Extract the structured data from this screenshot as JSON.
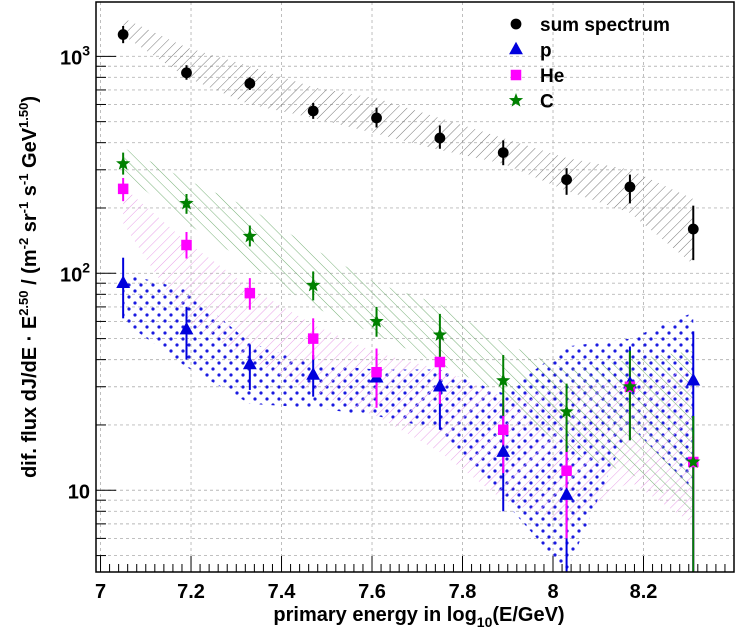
{
  "chart_data": {
    "type": "scatter",
    "title": "",
    "xlabel": {
      "main": "primary energy in log",
      "sub": "10",
      "tail": "(E/GeV)"
    },
    "ylabel": {
      "p1": "dif. flux dJ/dE · E",
      "p1sup": "2.50",
      "p2": " / (m",
      "p2sup": "-2",
      "p3": " sr",
      "p3sup": "-1",
      "p4": " s",
      "p4sup": "-1",
      "p5": " GeV",
      "p5sup": "1.50",
      "p6": ")"
    },
    "xlim": [
      6.99,
      8.4
    ],
    "ylim": [
      4.2,
      1780
    ],
    "yscale": "log",
    "grid": true,
    "x_ticks": [
      7.0,
      7.2,
      7.4,
      7.6,
      7.8,
      8.0,
      8.2
    ],
    "x_tick_labels": [
      "7",
      "7.2",
      "7.4",
      "7.6",
      "7.8",
      "8",
      "8.2"
    ],
    "y_tick_labels": [
      {
        "value": 10,
        "base": "10",
        "exp": ""
      },
      {
        "value": 100,
        "base": "10",
        "exp": "2"
      },
      {
        "value": 1000,
        "base": "10",
        "exp": "3"
      }
    ],
    "legend_position": "top-right",
    "series": [
      {
        "name": "sum spectrum",
        "color": "#000000",
        "marker": "circle",
        "x": [
          7.05,
          7.19,
          7.33,
          7.47,
          7.61,
          7.75,
          7.89,
          8.03,
          8.17,
          8.31
        ],
        "y": [
          1260,
          840,
          750,
          560,
          520,
          420,
          360,
          270,
          250,
          160
        ],
        "err": [
          [
            1150,
            1380
          ],
          [
            780,
            910
          ],
          [
            700,
            800
          ],
          [
            515,
            610
          ],
          [
            470,
            580
          ],
          [
            375,
            480
          ],
          [
            315,
            410
          ],
          [
            230,
            305
          ],
          [
            210,
            285
          ],
          [
            115,
            205
          ]
        ],
        "band_lower": [
          1250,
          800,
          600,
          520,
          440,
          370,
          320,
          240,
          190,
          110
        ],
        "band_upper": [
          1500,
          1100,
          900,
          720,
          640,
          520,
          420,
          340,
          300,
          220
        ]
      },
      {
        "name": "p",
        "color": "#0000dd",
        "marker": "triangle",
        "x": [
          7.05,
          7.19,
          7.33,
          7.47,
          7.61,
          7.75,
          7.89,
          8.03,
          8.17,
          8.31
        ],
        "y": [
          90,
          55,
          38,
          34,
          33,
          30,
          15,
          9.5,
          31,
          32
        ],
        "err": [
          [
            62,
            118
          ],
          [
            40,
            70
          ],
          [
            29,
            47
          ],
          [
            27,
            42
          ],
          [
            25,
            41
          ],
          [
            19,
            41
          ],
          [
            8,
            24
          ],
          [
            4.2,
            16
          ],
          [
            17,
            46
          ],
          [
            4.2,
            54
          ]
        ],
        "band_lower": [
          60,
          37,
          25,
          24,
          22,
          19,
          9,
          4.2,
          20,
          10
        ],
        "band_upper": [
          100,
          84,
          48,
          38,
          36,
          36,
          28,
          46,
          50,
          66
        ]
      },
      {
        "name": "He",
        "color": "#ff00ff",
        "marker": "square",
        "x": [
          7.05,
          7.19,
          7.33,
          7.47,
          7.61,
          7.75,
          7.89,
          8.03,
          8.17,
          8.31
        ],
        "y": [
          245,
          135,
          81,
          50,
          35,
          39,
          19,
          12.3,
          30,
          13.5
        ],
        "err": [
          [
            215,
            275
          ],
          [
            117,
            155
          ],
          [
            68,
            95
          ],
          [
            40,
            62
          ],
          [
            24,
            45
          ],
          [
            25,
            53
          ],
          [
            12,
            26
          ],
          [
            6,
            18
          ],
          [
            17,
            42
          ],
          [
            4.2,
            18
          ]
        ],
        "band_lower": [
          170,
          60,
          40,
          28,
          22,
          15,
          9,
          7,
          11,
          7
        ],
        "band_upper": [
          250,
          140,
          86,
          58,
          43,
          36,
          27,
          30,
          32,
          36
        ]
      },
      {
        "name": "C",
        "color": "#008000",
        "marker": "star",
        "x": [
          7.05,
          7.19,
          7.33,
          7.47,
          7.61,
          7.75,
          7.89,
          8.03,
          8.17,
          8.31
        ],
        "y": [
          320,
          210,
          148,
          88,
          60,
          52,
          32,
          23,
          30,
          13.5
        ],
        "err": [
          [
            285,
            360
          ],
          [
            188,
            232
          ],
          [
            133,
            166
          ],
          [
            75,
            102
          ],
          [
            51,
            70
          ],
          [
            40,
            65
          ],
          [
            22,
            42
          ],
          [
            15,
            31
          ],
          [
            17,
            44
          ],
          [
            4.2,
            22
          ]
        ],
        "band_lower": [
          290,
          170,
          110,
          70,
          52,
          38,
          28,
          15,
          12,
          8
        ],
        "band_upper": [
          380,
          270,
          200,
          130,
          90,
          72,
          48,
          36,
          40,
          44
        ]
      }
    ]
  }
}
